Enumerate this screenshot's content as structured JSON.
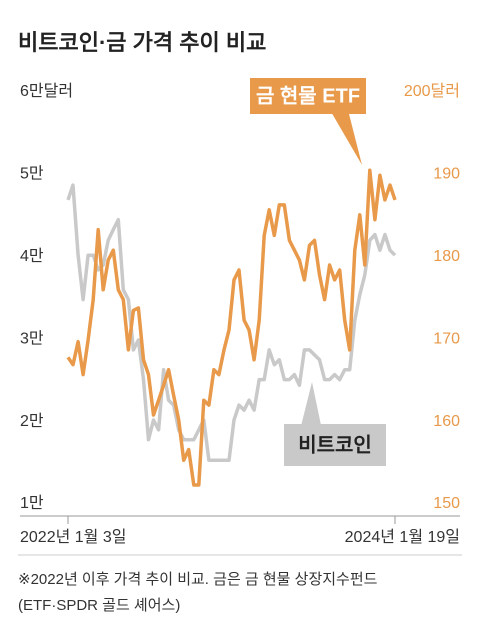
{
  "chart_data": {
    "type": "line",
    "title": "비트코인·금 가격 추이 비교",
    "categories": [
      "2022년 1월 3일",
      null,
      null,
      null,
      null,
      null,
      null,
      null,
      null,
      null,
      null,
      null,
      null,
      null,
      null,
      null,
      null,
      null,
      null,
      null,
      null,
      null,
      null,
      null,
      null,
      null,
      null,
      null,
      null,
      null,
      null,
      null,
      null,
      null,
      null,
      null,
      null,
      null,
      null,
      null,
      null,
      null,
      null,
      null,
      null,
      null,
      null,
      null,
      null,
      null,
      null,
      null,
      null,
      null,
      null,
      null,
      null,
      null,
      null,
      null,
      null,
      null,
      null,
      null,
      null,
      "2024년 1월 19일"
    ],
    "ylim": [
      10000,
      60000
    ],
    "yticks": [
      {
        "value": 10000,
        "label": "1만"
      },
      {
        "value": 20000,
        "label": "2만"
      },
      {
        "value": 30000,
        "label": "3만"
      },
      {
        "value": 40000,
        "label": "4만"
      },
      {
        "value": 50000,
        "label": "5만"
      },
      {
        "value": 60000,
        "label": "6만달러"
      }
    ],
    "y2lim": [
      150,
      200
    ],
    "y2ticks": [
      150,
      160,
      170,
      180,
      190,
      {
        "value": 200,
        "label": "200달러"
      }
    ],
    "series": [
      {
        "name": "비트코인",
        "color": "#c9c9c9",
        "values": [
          46900,
          48700,
          40200,
          34800,
          40200,
          40200,
          38400,
          39000,
          42000,
          43300,
          44500,
          36000,
          34800,
          28700,
          29900,
          25100,
          17800,
          20200,
          19000,
          26300,
          22600,
          22000,
          19000,
          17800,
          17800,
          17800,
          19000,
          20200,
          15300,
          15300,
          15300,
          15300,
          15300,
          20200,
          22000,
          21400,
          22600,
          21400,
          25100,
          25100,
          28700,
          26900,
          27500,
          25100,
          25100,
          25700,
          24400,
          28700,
          28700,
          28100,
          27500,
          25100,
          25100,
          25700,
          25100,
          26300,
          26300,
          32300,
          35400,
          37800,
          42000,
          42700,
          40800,
          42700,
          40800,
          40200
        ]
      },
      {
        "name": "금 현물 ETF",
        "color": "#e8994a",
        "axis": "y2",
        "values": [
          167.8,
          166.9,
          169.7,
          165.7,
          169.9,
          174.8,
          183.3,
          176.0,
          179.6,
          180.8,
          176.0,
          174.8,
          168.7,
          173.5,
          173.8,
          167.5,
          165.7,
          160.8,
          162.6,
          164.4,
          166.3,
          163.2,
          160.2,
          155.3,
          156.6,
          152.3,
          152.3,
          162.6,
          162.0,
          166.3,
          165.7,
          168.7,
          171.1,
          177.2,
          178.4,
          172.3,
          171.1,
          167.5,
          172.3,
          182.6,
          185.7,
          182.6,
          186.3,
          186.3,
          182.0,
          180.8,
          179.6,
          177.2,
          181.4,
          182.0,
          177.8,
          174.8,
          179.0,
          177.2,
          178.4,
          172.3,
          168.7,
          180.8,
          185.1,
          179.0,
          190.5,
          184.5,
          189.9,
          186.9,
          188.7,
          186.9
        ]
      }
    ],
    "notes": [
      "※2022년 이후 가격 추이 비교. 금은 금 현물 상장지수펀드",
      "(ETF·SPDR 골드 셰어스)"
    ]
  }
}
